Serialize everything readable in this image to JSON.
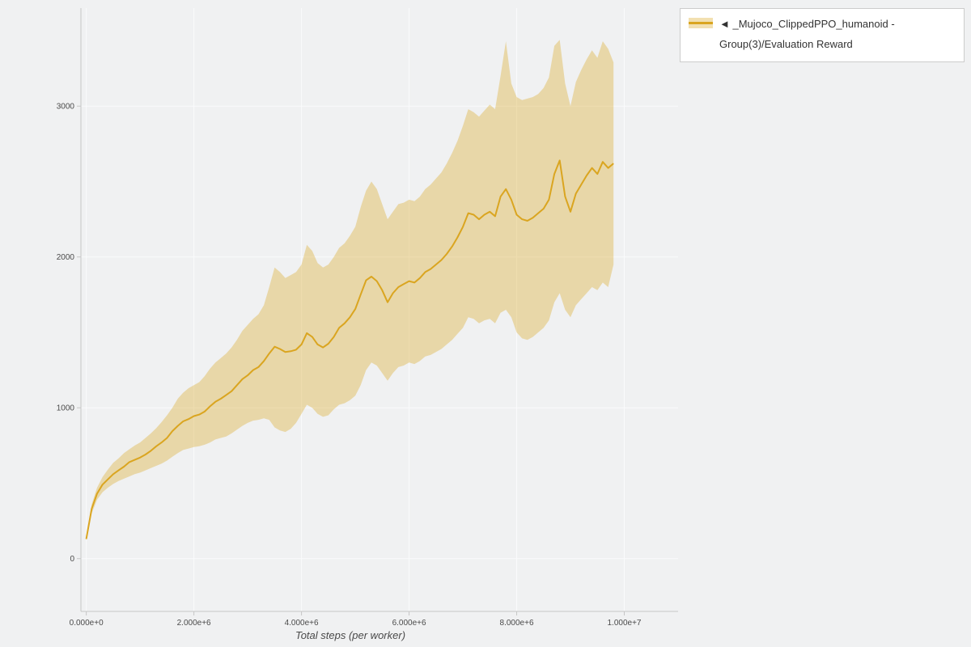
{
  "page": {
    "background": "#f0f1f2"
  },
  "legend": {
    "marker": "◄",
    "label": "_Mujoco_ClippedPPO_humanoid - Group(3)/Evaluation Reward"
  },
  "chart_data": {
    "type": "line",
    "title": "",
    "xlabel": "Total steps (per worker)",
    "ylabel": "",
    "grid": true,
    "legend_position": "top-right",
    "x_range": [
      -100000,
      11000000
    ],
    "y_range": [
      -350,
      3650
    ],
    "x_ticks": {
      "values": [
        0,
        2000000,
        4000000,
        6000000,
        8000000,
        10000000
      ],
      "labels": [
        "0.000e+0",
        "2.000e+6",
        "4.000e+6",
        "6.000e+6",
        "8.000e+6",
        "1.000e+7"
      ]
    },
    "y_ticks": {
      "values": [
        0,
        1000,
        2000,
        3000
      ],
      "labels": [
        "0",
        "1000",
        "2000",
        "3000"
      ]
    },
    "series": [
      {
        "name": "_Mujoco_ClippedPPO_humanoid - Group(3)/Evaluation Reward",
        "x_start": 0,
        "x_step": 100000,
        "mean": [
          130,
          330,
          430,
          490,
          525,
          560,
          585,
          610,
          640,
          655,
          670,
          690,
          715,
          745,
          770,
          800,
          845,
          880,
          910,
          925,
          945,
          955,
          975,
          1010,
          1040,
          1060,
          1085,
          1110,
          1150,
          1190,
          1215,
          1250,
          1270,
          1310,
          1360,
          1405,
          1390,
          1370,
          1375,
          1385,
          1420,
          1495,
          1470,
          1420,
          1400,
          1425,
          1470,
          1530,
          1560,
          1600,
          1655,
          1750,
          1845,
          1870,
          1840,
          1780,
          1700,
          1760,
          1800,
          1820,
          1840,
          1830,
          1860,
          1900,
          1920,
          1950,
          1980,
          2020,
          2070,
          2130,
          2200,
          2290,
          2280,
          2250,
          2280,
          2300,
          2270,
          2400,
          2450,
          2380,
          2280,
          2250,
          2240,
          2260,
          2290,
          2320,
          2380,
          2550,
          2640,
          2400,
          2300,
          2420,
          2480,
          2540,
          2590,
          2550,
          2630,
          2590,
          2620
        ],
        "band_low": [
          120,
          300,
          390,
          440,
          470,
          495,
          515,
          530,
          545,
          560,
          570,
          585,
          600,
          615,
          630,
          650,
          675,
          700,
          720,
          730,
          740,
          745,
          755,
          770,
          790,
          800,
          810,
          830,
          855,
          880,
          900,
          915,
          920,
          930,
          920,
          870,
          850,
          840,
          860,
          900,
          960,
          1020,
          1000,
          960,
          940,
          950,
          990,
          1020,
          1030,
          1050,
          1080,
          1150,
          1250,
          1300,
          1280,
          1230,
          1180,
          1230,
          1270,
          1280,
          1300,
          1290,
          1310,
          1340,
          1350,
          1370,
          1390,
          1420,
          1450,
          1490,
          1530,
          1600,
          1590,
          1560,
          1580,
          1590,
          1560,
          1630,
          1650,
          1600,
          1500,
          1460,
          1450,
          1470,
          1500,
          1530,
          1580,
          1700,
          1760,
          1650,
          1600,
          1680,
          1720,
          1760,
          1800,
          1780,
          1830,
          1800,
          1950
        ],
        "band_high": [
          140,
          360,
          470,
          540,
          590,
          635,
          665,
          700,
          725,
          750,
          770,
          800,
          830,
          865,
          905,
          950,
          1000,
          1060,
          1100,
          1130,
          1150,
          1170,
          1210,
          1260,
          1300,
          1330,
          1360,
          1400,
          1450,
          1510,
          1550,
          1590,
          1620,
          1680,
          1800,
          1930,
          1900,
          1860,
          1880,
          1900,
          1950,
          2080,
          2040,
          1960,
          1930,
          1950,
          2000,
          2060,
          2090,
          2140,
          2200,
          2330,
          2440,
          2500,
          2450,
          2350,
          2250,
          2300,
          2350,
          2360,
          2380,
          2370,
          2400,
          2450,
          2480,
          2520,
          2560,
          2620,
          2690,
          2770,
          2870,
          2980,
          2960,
          2930,
          2970,
          3010,
          2980,
          3200,
          3430,
          3150,
          3060,
          3040,
          3050,
          3060,
          3080,
          3120,
          3190,
          3400,
          3440,
          3150,
          3000,
          3160,
          3240,
          3310,
          3370,
          3320,
          3430,
          3380,
          3290
        ]
      }
    ],
    "colors": {
      "line": "#daa520",
      "band_fill": "rgba(218,165,32,0.35)",
      "grid": "#fafbfc",
      "axis": "#c6c6c6",
      "tick_text": "#4a4a4a",
      "legend_border": "#cccccc",
      "legend_bg": "#ffffff"
    }
  }
}
